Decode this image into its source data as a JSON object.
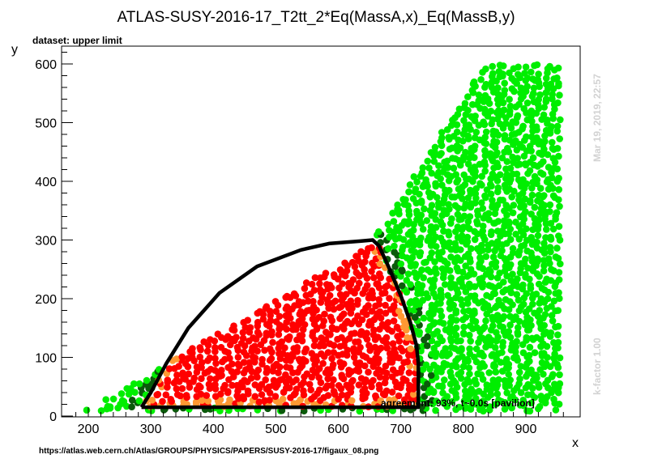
{
  "chart_data": {
    "type": "scatter",
    "title": "ATLAS-SUSY-2016-17_T2tt_2*Eq(MassA,x)_Eq(MassB,y)",
    "subtitle": "dataset: upper limit",
    "xlabel": "x",
    "ylabel": "y",
    "xlim": [
      165,
      990
    ],
    "ylim": [
      0,
      600
    ],
    "x_ticks": [
      200,
      300,
      400,
      500,
      600,
      700,
      800,
      900
    ],
    "y_ticks": [
      0,
      100,
      200,
      300,
      400,
      500,
      600
    ],
    "grid": false,
    "colors": {
      "light_green": "#00ee00",
      "dark_green": "#0b5a0b",
      "red": "#ff0000",
      "orange": "#ff9933",
      "contour": "#000000"
    },
    "region_boundaries": [
      {
        "name": "lower-left edge of populated region",
        "points": [
          [
            195,
            10
          ],
          [
            650,
            290
          ],
          [
            835,
            600
          ]
        ]
      },
      {
        "name": "lower edge",
        "points": [
          [
            195,
            10
          ],
          [
            950,
            10
          ]
        ]
      },
      {
        "name": "exclusion contour",
        "points": [
          [
            285,
            15
          ],
          [
            300,
            40
          ],
          [
            325,
            90
          ],
          [
            360,
            150
          ],
          [
            410,
            210
          ],
          [
            470,
            255
          ],
          [
            540,
            283
          ],
          [
            585,
            294
          ],
          [
            635,
            298
          ],
          [
            655,
            300
          ],
          [
            665,
            290
          ],
          [
            680,
            255
          ],
          [
            700,
            205
          ],
          [
            715,
            160
          ],
          [
            725,
            120
          ],
          [
            728,
            90
          ],
          [
            728,
            50
          ],
          [
            728,
            15
          ],
          [
            285,
            15
          ]
        ]
      }
    ],
    "series": [
      {
        "name": "light-green points",
        "density": "dense",
        "region": "above the contour up to the upper envelope, x 195-955, y 10-600"
      },
      {
        "name": "dark-green points",
        "density": "sparse",
        "region": "just outside the contour boundary"
      },
      {
        "name": "red points",
        "density": "dense",
        "region": "inside the contour, x 270-700, y 15-290"
      },
      {
        "name": "orange points",
        "density": "sparse",
        "region": "just inside the contour boundary"
      }
    ],
    "annotation": "agreement: 93%, t~0.0s [pavilion]",
    "side_texts": [
      "Mar 19, 2019, 22:57",
      "k-factor 1.00"
    ],
    "footer_url": "https://atlas.web.cern.ch/Atlas/GROUPS/PHYSICS/PAPERS/SUSY-2016-17/figaux_08.png"
  }
}
